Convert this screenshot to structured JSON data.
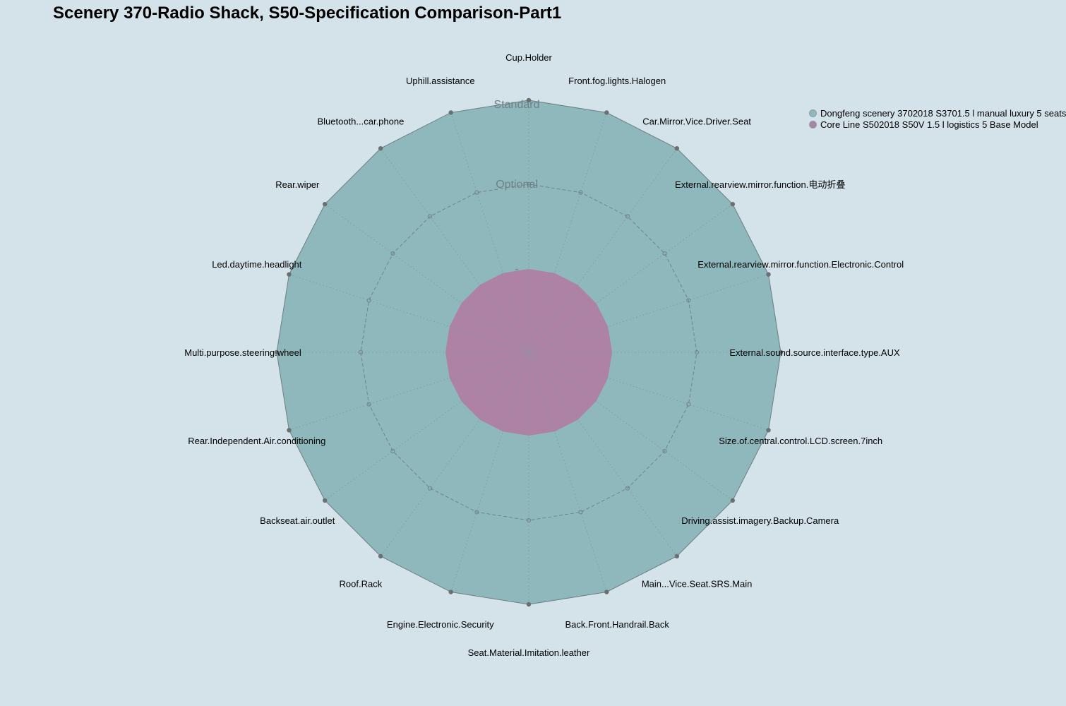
{
  "chart_data": {
    "type": "radar",
    "title": "Scenery 370-Radio Shack, S50-Specification Comparison-Part1",
    "levels": [
      "Standard",
      "Optional",
      "-"
    ],
    "categories": [
      "Cup.Holder",
      "Front.fog.lights.Halogen",
      "Car.Mirror.Vice.Driver.Seat",
      "External.rearview.mirror.function.电动折叠",
      "External.rearview.mirror.function.Electronic.Control",
      "External.sound.source.interface.type.AUX",
      "Size.of.central.control.LCD.screen.7inch",
      "Driving.assist.imagery.Backup.Camera",
      "Main...Vice.Seat.SRS.Main",
      "Back.Front.Handrail.Back",
      "Seat.Material.Imitation.leather",
      "Engine.Electronic.Security",
      "Roof.Rack",
      "Backseat.air.outlet",
      "Rear.Independent.Air.conditioning",
      "Multi.purpose.steering.wheel",
      "Led.daytime.headlight",
      "Rear.wiper",
      "Bluetooth...car.phone",
      "Uphill.assistance"
    ],
    "series": [
      {
        "name": "Dongfeng scenery 3702018 S3701.5 l manual luxury 5 seats",
        "color": "#8fb8bd",
        "values": [
          "Standard",
          "Standard",
          "Standard",
          "Standard",
          "Standard",
          "Standard",
          "Standard",
          "Standard",
          "Standard",
          "Standard",
          "Standard",
          "Standard",
          "Standard",
          "Standard",
          "Standard",
          "Standard",
          "Standard",
          "Standard",
          "Standard",
          "Standard"
        ]
      },
      {
        "name": "Core Line S502018 S50V 1.5 l logistics 5 Base Model",
        "color": "#ad82a4",
        "values": [
          "-",
          "-",
          "-",
          "-",
          "-",
          "-",
          "-",
          "-",
          "-",
          "-",
          "-",
          "-",
          "-",
          "-",
          "-",
          "-",
          "-",
          "-",
          "-",
          "-"
        ]
      }
    ],
    "legend_position": "top-right",
    "grid": true
  }
}
